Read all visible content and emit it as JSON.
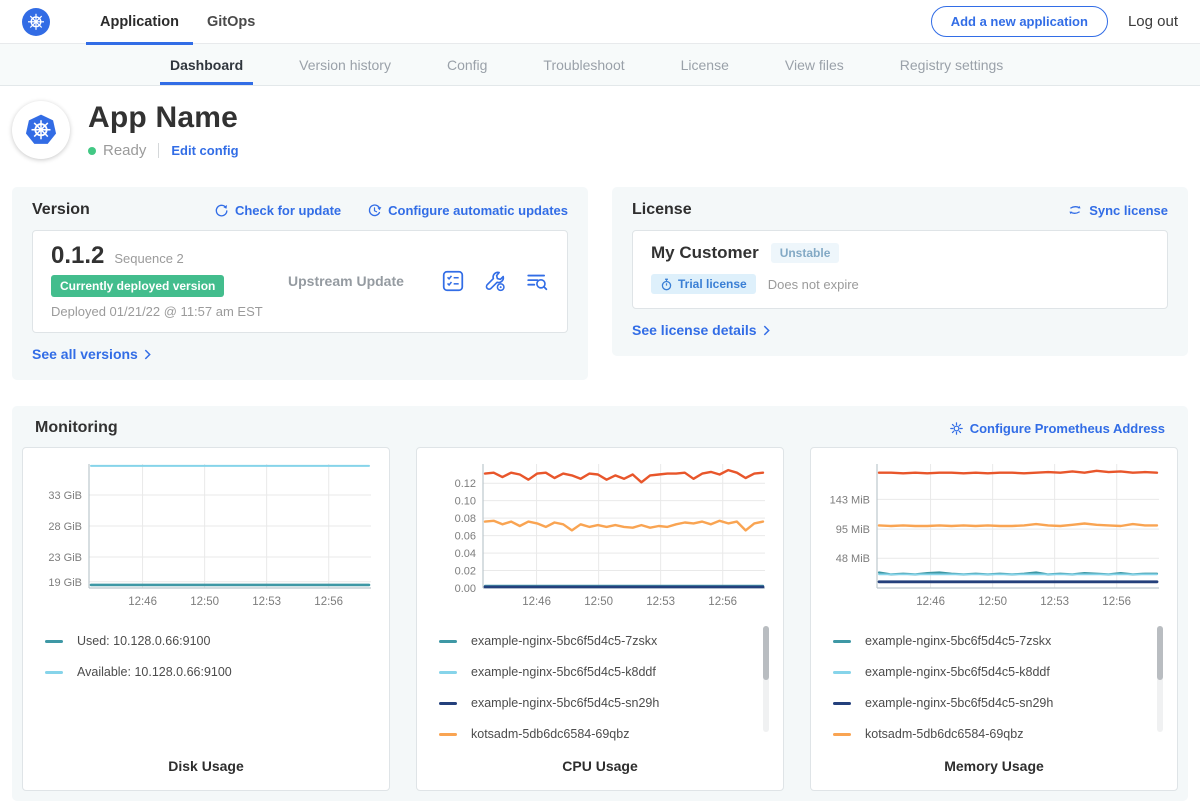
{
  "topnav": {
    "tabs": [
      {
        "label": "Application",
        "active": true
      },
      {
        "label": "GitOps",
        "active": false
      }
    ],
    "add_app_label": "Add a new application",
    "logout_label": "Log out"
  },
  "subnav": {
    "items": [
      {
        "label": "Dashboard",
        "active": true
      },
      {
        "label": "Version history",
        "active": false
      },
      {
        "label": "Config",
        "active": false
      },
      {
        "label": "Troubleshoot",
        "active": false
      },
      {
        "label": "License",
        "active": false
      },
      {
        "label": "View files",
        "active": false
      },
      {
        "label": "Registry settings",
        "active": false
      }
    ]
  },
  "app_header": {
    "title": "App Name",
    "status": "Ready",
    "edit_config": "Edit config"
  },
  "version_card": {
    "title": "Version",
    "check_update": "Check for update",
    "configure_updates": "Configure automatic updates",
    "version": "0.1.2",
    "sequence": "Sequence 2",
    "deployed_badge": "Currently deployed version",
    "deployed_at": "Deployed 01/21/22 @ 11:57 am EST",
    "upstream": "Upstream Update",
    "see_all": "See all versions"
  },
  "license_card": {
    "title": "License",
    "sync": "Sync license",
    "customer": "My Customer",
    "channel": "Unstable",
    "type_badge": "Trial license",
    "expiry": "Does not expire",
    "details": "See license details"
  },
  "monitoring": {
    "title": "Monitoring",
    "configure": "Configure Prometheus Address"
  },
  "colors": {
    "accent_blue": "#326de6",
    "status_green": "#42c884",
    "deployed_badge_green": "#43bd8d",
    "trial_badge_bg": "#def0fb",
    "channel_badge_bg": "#eef6fb",
    "card_bg": "#f4f8f9"
  },
  "chart_data": [
    {
      "type": "line",
      "title": "Disk Usage",
      "ylabel": "GiB",
      "y_domain": [
        18,
        38
      ],
      "y_ticks": [
        {
          "value": 19,
          "label": "19 GiB"
        },
        {
          "value": 23,
          "label": "23 GiB"
        },
        {
          "value": 28,
          "label": "28 GiB"
        },
        {
          "value": 33,
          "label": "33 GiB"
        }
      ],
      "x_ticks": [
        {
          "label": "12:46",
          "pos": 0.19
        },
        {
          "label": "12:50",
          "pos": 0.41
        },
        {
          "label": "12:53",
          "pos": 0.63
        },
        {
          "label": "12:56",
          "pos": 0.85
        }
      ],
      "grid": true,
      "legend_position": "bottom-left",
      "legend_scrollbar": false,
      "series": [
        {
          "name": "Used: 10.128.0.66:9100",
          "color": "#3e98a5",
          "width": 2.6,
          "values": [
            18.5,
            18.5,
            18.5,
            18.5,
            18.5,
            18.5,
            18.5,
            18.5,
            18.5,
            18.5,
            18.5,
            18.5,
            18.5
          ]
        },
        {
          "name": "Available: 10.128.0.66:9100",
          "color": "#86d4ea",
          "width": 2,
          "values": [
            37.7,
            37.7,
            37.7,
            37.7,
            37.7,
            37.7,
            37.7,
            37.7,
            37.7,
            37.7,
            37.7,
            37.7,
            37.7
          ]
        }
      ]
    },
    {
      "type": "line",
      "title": "CPU Usage",
      "ylabel": "cores",
      "y_domain": [
        0,
        0.142
      ],
      "y_ticks": [
        {
          "value": 0.0,
          "label": "0.00"
        },
        {
          "value": 0.02,
          "label": "0.02"
        },
        {
          "value": 0.04,
          "label": "0.04"
        },
        {
          "value": 0.06,
          "label": "0.06"
        },
        {
          "value": 0.08,
          "label": "0.08"
        },
        {
          "value": 0.1,
          "label": "0.10"
        },
        {
          "value": 0.12,
          "label": "0.12"
        }
      ],
      "x_ticks": [
        {
          "label": "12:46",
          "pos": 0.19
        },
        {
          "label": "12:50",
          "pos": 0.41
        },
        {
          "label": "12:53",
          "pos": 0.63
        },
        {
          "label": "12:56",
          "pos": 0.85
        }
      ],
      "grid": true,
      "legend_position": "bottom-left",
      "legend_scrollbar": true,
      "series": [
        {
          "name": "example-nginx-5bc6f5d4c5-7zskx",
          "color": "#3e98a5",
          "width": 2.2,
          "values": [
            0.0025,
            0.0025
          ]
        },
        {
          "name": "example-nginx-5bc6f5d4c5-k8ddf",
          "color": "#86d4ea",
          "width": 1.8,
          "values": [
            0.002,
            0.002
          ]
        },
        {
          "name": "example-nginx-5bc6f5d4c5-sn29h",
          "color": "#24407c",
          "width": 2.8,
          "values": [
            0.0013,
            0.0013
          ]
        },
        {
          "name": "kotsadm-5db6dc6584-69qbz",
          "color": "#f9a452",
          "width": 2.4,
          "values": [
            0.076,
            0.077,
            0.073,
            0.076,
            0.071,
            0.076,
            0.074,
            0.07,
            0.075,
            0.073,
            0.066,
            0.073,
            0.07,
            0.072,
            0.07,
            0.072,
            0.07,
            0.069,
            0.072,
            0.069,
            0.071,
            0.07,
            0.073,
            0.075,
            0.074,
            0.076,
            0.073,
            0.077,
            0.074,
            0.076,
            0.066,
            0.074,
            0.076
          ]
        },
        {
          "name": "",
          "color": "#e8562b",
          "width": 2.4,
          "values": [
            0.131,
            0.132,
            0.127,
            0.132,
            0.13,
            0.124,
            0.131,
            0.132,
            0.126,
            0.131,
            0.129,
            0.125,
            0.131,
            0.13,
            0.124,
            0.129,
            0.125,
            0.13,
            0.121,
            0.129,
            0.13,
            0.131,
            0.131,
            0.132,
            0.125,
            0.131,
            0.133,
            0.13,
            0.135,
            0.132,
            0.126,
            0.131,
            0.132
          ]
        }
      ]
    },
    {
      "type": "line",
      "title": "Memory Usage",
      "ylabel": "MiB",
      "y_domain": [
        0,
        200
      ],
      "y_ticks": [
        {
          "value": 48,
          "label": "48 MiB"
        },
        {
          "value": 95,
          "label": "95 MiB"
        },
        {
          "value": 143,
          "label": "143 MiB"
        }
      ],
      "x_ticks": [
        {
          "label": "12:46",
          "pos": 0.19
        },
        {
          "label": "12:50",
          "pos": 0.41
        },
        {
          "label": "12:53",
          "pos": 0.63
        },
        {
          "label": "12:56",
          "pos": 0.85
        }
      ],
      "grid": true,
      "legend_position": "bottom-left",
      "legend_scrollbar": true,
      "series": [
        {
          "name": "example-nginx-5bc6f5d4c5-7zskx",
          "color": "#3e98a5",
          "width": 2.2,
          "values": [
            25,
            22,
            23,
            22,
            24,
            25,
            23,
            22,
            23,
            22,
            23,
            22,
            23,
            25,
            22,
            23,
            22,
            24,
            23,
            22,
            24,
            22,
            23,
            23
          ]
        },
        {
          "name": "example-nginx-5bc6f5d4c5-k8ddf",
          "color": "#86d4ea",
          "width": 1.8,
          "values": [
            22,
            22
          ]
        },
        {
          "name": "example-nginx-5bc6f5d4c5-sn29h",
          "color": "#24407c",
          "width": 2.8,
          "values": [
            10,
            10
          ]
        },
        {
          "name": "kotsadm-5db6dc6584-69qbz",
          "color": "#f9a452",
          "width": 2.4,
          "values": [
            101,
            100,
            101,
            100,
            100,
            101,
            100,
            101,
            100,
            101,
            100,
            100,
            101,
            103,
            101,
            100,
            102,
            104,
            102,
            101,
            100,
            103,
            101,
            101
          ]
        },
        {
          "name": "",
          "color": "#e8562b",
          "width": 2.4,
          "values": [
            186,
            186,
            185,
            186,
            185,
            186,
            186,
            185,
            186,
            185,
            186,
            186,
            185,
            186,
            187,
            186,
            188,
            186,
            189,
            187,
            188,
            186,
            187,
            186
          ]
        }
      ]
    }
  ]
}
